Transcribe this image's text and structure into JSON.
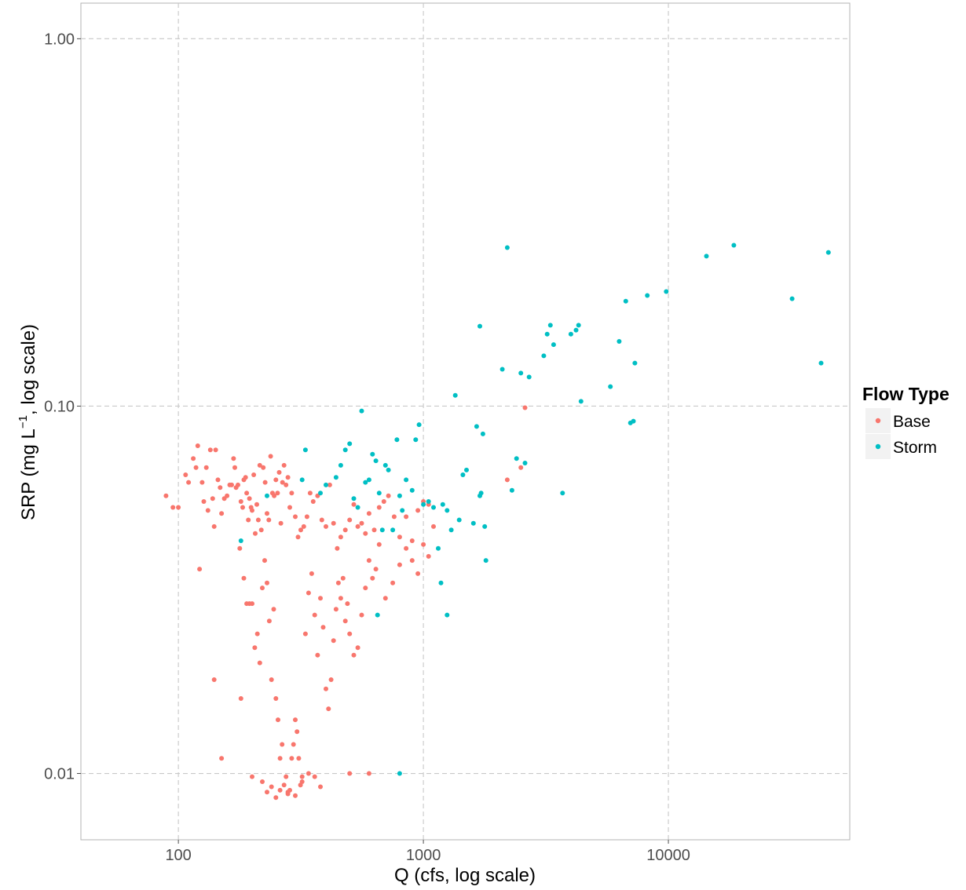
{
  "chart_data": {
    "type": "scatter",
    "xlabel": "Q (cfs, log scale)",
    "ylabel_main": "SRP (mg L",
    "ylabel_sup": "−1",
    "ylabel_rest": ", log scale)",
    "x_scale": "log10",
    "y_scale": "log10",
    "xlim": [
      40,
      55000
    ],
    "ylim": [
      0.0066,
      1.25
    ],
    "x_ticks": [
      100,
      1000,
      10000
    ],
    "x_tick_labels": [
      "100",
      "1000",
      "10000"
    ],
    "y_ticks": [
      0.01,
      0.1,
      1.0
    ],
    "y_tick_labels": [
      "0.01",
      "0.10",
      "1.00"
    ],
    "grid": true,
    "grid_style": "dashed",
    "legend": {
      "title": "Flow Type",
      "placement": "right",
      "entries": [
        "Base",
        "Storm"
      ]
    },
    "colors": {
      "Base": "#F8766D",
      "Storm": "#00BFC4"
    },
    "series": [
      {
        "name": "Base",
        "color": "#F8766D",
        "points": [
          [
            89,
            0.057
          ],
          [
            95,
            0.053
          ],
          [
            100,
            0.053
          ],
          [
            107,
            0.065
          ],
          [
            110,
            0.062
          ],
          [
            115,
            0.072
          ],
          [
            118,
            0.068
          ],
          [
            120,
            0.078
          ],
          [
            122,
            0.036
          ],
          [
            125,
            0.062
          ],
          [
            127,
            0.055
          ],
          [
            130,
            0.068
          ],
          [
            132,
            0.052
          ],
          [
            135,
            0.076
          ],
          [
            138,
            0.056
          ],
          [
            140,
            0.047
          ],
          [
            142,
            0.076
          ],
          [
            145,
            0.063
          ],
          [
            148,
            0.06
          ],
          [
            150,
            0.051
          ],
          [
            154,
            0.056
          ],
          [
            158,
            0.057
          ],
          [
            162,
            0.061
          ],
          [
            165,
            0.061
          ],
          [
            168,
            0.072
          ],
          [
            170,
            0.068
          ],
          [
            172,
            0.06
          ],
          [
            175,
            0.061
          ],
          [
            178,
            0.041
          ],
          [
            180,
            0.055
          ],
          [
            183,
            0.053
          ],
          [
            185,
            0.063
          ],
          [
            188,
            0.064
          ],
          [
            190,
            0.058
          ],
          [
            193,
            0.049
          ],
          [
            195,
            0.056
          ],
          [
            198,
            0.053
          ],
          [
            200,
            0.052
          ],
          [
            203,
            0.065
          ],
          [
            206,
            0.045
          ],
          [
            209,
            0.054
          ],
          [
            212,
            0.049
          ],
          [
            215,
            0.069
          ],
          [
            218,
            0.046
          ],
          [
            222,
            0.068
          ],
          [
            226,
            0.062
          ],
          [
            230,
            0.051
          ],
          [
            234,
            0.049
          ],
          [
            238,
            0.073
          ],
          [
            242,
            0.058
          ],
          [
            246,
            0.057
          ],
          [
            250,
            0.063
          ],
          [
            254,
            0.058
          ],
          [
            258,
            0.066
          ],
          [
            262,
            0.048
          ],
          [
            266,
            0.062
          ],
          [
            270,
            0.069
          ],
          [
            275,
            0.061
          ],
          [
            280,
            0.064
          ],
          [
            285,
            0.053
          ],
          [
            290,
            0.058
          ],
          [
            300,
            0.05
          ],
          [
            308,
            0.044
          ],
          [
            316,
            0.046
          ],
          [
            325,
            0.047
          ],
          [
            335,
            0.05
          ],
          [
            345,
            0.058
          ],
          [
            355,
            0.055
          ],
          [
            370,
            0.057
          ],
          [
            385,
            0.049
          ],
          [
            400,
            0.047
          ],
          [
            415,
            0.061
          ],
          [
            430,
            0.048
          ],
          [
            445,
            0.041
          ],
          [
            460,
            0.044
          ],
          [
            480,
            0.046
          ],
          [
            500,
            0.049
          ],
          [
            520,
            0.054
          ],
          [
            540,
            0.047
          ],
          [
            560,
            0.048
          ],
          [
            580,
            0.045
          ],
          [
            600,
            0.051
          ],
          [
            630,
            0.046
          ],
          [
            660,
            0.053
          ],
          [
            690,
            0.055
          ],
          [
            720,
            0.057
          ],
          [
            760,
            0.05
          ],
          [
            800,
            0.044
          ],
          [
            850,
            0.05
          ],
          [
            900,
            0.043
          ],
          [
            950,
            0.052
          ],
          [
            1000,
            0.055
          ],
          [
            1050,
            0.054
          ],
          [
            1100,
            0.047
          ],
          [
            140,
            0.018
          ],
          [
            150,
            0.011
          ],
          [
            180,
            0.016
          ],
          [
            185,
            0.034
          ],
          [
            190,
            0.029
          ],
          [
            195,
            0.029
          ],
          [
            200,
            0.029
          ],
          [
            205,
            0.022
          ],
          [
            210,
            0.024
          ],
          [
            215,
            0.02
          ],
          [
            220,
            0.032
          ],
          [
            225,
            0.038
          ],
          [
            230,
            0.033
          ],
          [
            235,
            0.026
          ],
          [
            240,
            0.018
          ],
          [
            245,
            0.028
          ],
          [
            250,
            0.016
          ],
          [
            255,
            0.014
          ],
          [
            260,
            0.011
          ],
          [
            265,
            0.012
          ],
          [
            270,
            0.0093
          ],
          [
            275,
            0.0098
          ],
          [
            280,
            0.0089
          ],
          [
            285,
            0.009
          ],
          [
            290,
            0.011
          ],
          [
            295,
            0.012
          ],
          [
            300,
            0.014
          ],
          [
            305,
            0.013
          ],
          [
            310,
            0.011
          ],
          [
            315,
            0.0093
          ],
          [
            320,
            0.0098
          ],
          [
            330,
            0.024
          ],
          [
            340,
            0.031
          ],
          [
            350,
            0.035
          ],
          [
            360,
            0.027
          ],
          [
            370,
            0.021
          ],
          [
            380,
            0.03
          ],
          [
            390,
            0.025
          ],
          [
            400,
            0.017
          ],
          [
            410,
            0.015
          ],
          [
            420,
            0.018
          ],
          [
            430,
            0.023
          ],
          [
            440,
            0.028
          ],
          [
            450,
            0.033
          ],
          [
            460,
            0.03
          ],
          [
            470,
            0.034
          ],
          [
            480,
            0.026
          ],
          [
            490,
            0.029
          ],
          [
            500,
            0.024
          ],
          [
            520,
            0.021
          ],
          [
            540,
            0.022
          ],
          [
            560,
            0.027
          ],
          [
            580,
            0.032
          ],
          [
            600,
            0.038
          ],
          [
            620,
            0.034
          ],
          [
            640,
            0.036
          ],
          [
            660,
            0.042
          ],
          [
            700,
            0.03
          ],
          [
            750,
            0.033
          ],
          [
            800,
            0.037
          ],
          [
            850,
            0.041
          ],
          [
            900,
            0.038
          ],
          [
            950,
            0.035
          ],
          [
            1000,
            0.042
          ],
          [
            1050,
            0.039
          ],
          [
            200,
            0.0098
          ],
          [
            220,
            0.0095
          ],
          [
            240,
            0.0092
          ],
          [
            260,
            0.009
          ],
          [
            280,
            0.0088
          ],
          [
            300,
            0.0087
          ],
          [
            320,
            0.0095
          ],
          [
            340,
            0.01
          ],
          [
            360,
            0.0098
          ],
          [
            380,
            0.0092
          ],
          [
            250,
            0.0086
          ],
          [
            230,
            0.0089
          ],
          [
            500,
            0.01
          ],
          [
            600,
            0.01
          ],
          [
            2200,
            0.063
          ],
          [
            2500,
            0.068
          ],
          [
            2600,
            0.099
          ]
        ]
      },
      {
        "name": "Storm",
        "color": "#00BFC4",
        "points": [
          [
            180,
            0.043
          ],
          [
            230,
            0.057
          ],
          [
            320,
            0.063
          ],
          [
            330,
            0.076
          ],
          [
            380,
            0.058
          ],
          [
            400,
            0.061
          ],
          [
            440,
            0.064
          ],
          [
            460,
            0.069
          ],
          [
            480,
            0.076
          ],
          [
            500,
            0.079
          ],
          [
            520,
            0.056
          ],
          [
            540,
            0.053
          ],
          [
            560,
            0.097
          ],
          [
            580,
            0.062
          ],
          [
            600,
            0.063
          ],
          [
            620,
            0.074
          ],
          [
            640,
            0.071
          ],
          [
            660,
            0.058
          ],
          [
            680,
            0.046
          ],
          [
            700,
            0.069
          ],
          [
            720,
            0.067
          ],
          [
            750,
            0.046
          ],
          [
            780,
            0.081
          ],
          [
            800,
            0.057
          ],
          [
            820,
            0.052
          ],
          [
            850,
            0.063
          ],
          [
            900,
            0.059
          ],
          [
            930,
            0.081
          ],
          [
            960,
            0.089
          ],
          [
            1000,
            0.054
          ],
          [
            1050,
            0.055
          ],
          [
            1100,
            0.053
          ],
          [
            1150,
            0.041
          ],
          [
            1200,
            0.054
          ],
          [
            1250,
            0.052
          ],
          [
            1300,
            0.046
          ],
          [
            1350,
            0.107
          ],
          [
            1400,
            0.049
          ],
          [
            1450,
            0.065
          ],
          [
            1500,
            0.067
          ],
          [
            1600,
            0.048
          ],
          [
            1650,
            0.088
          ],
          [
            1700,
            0.057
          ],
          [
            1720,
            0.058
          ],
          [
            1750,
            0.084
          ],
          [
            1780,
            0.047
          ],
          [
            1800,
            0.038
          ],
          [
            1700,
            0.165
          ],
          [
            2100,
            0.126
          ],
          [
            2200,
            0.27
          ],
          [
            2300,
            0.059
          ],
          [
            2400,
            0.072
          ],
          [
            2500,
            0.123
          ],
          [
            2600,
            0.07
          ],
          [
            2700,
            0.12
          ],
          [
            3100,
            0.137
          ],
          [
            3200,
            0.157
          ],
          [
            3300,
            0.166
          ],
          [
            3400,
            0.147
          ],
          [
            3700,
            0.058
          ],
          [
            4000,
            0.157
          ],
          [
            4200,
            0.161
          ],
          [
            4300,
            0.166
          ],
          [
            4400,
            0.103
          ],
          [
            5800,
            0.113
          ],
          [
            6300,
            0.15
          ],
          [
            6700,
            0.193
          ],
          [
            7000,
            0.09
          ],
          [
            7200,
            0.091
          ],
          [
            7300,
            0.131
          ],
          [
            8200,
            0.2
          ],
          [
            9800,
            0.205
          ],
          [
            14300,
            0.256
          ],
          [
            18500,
            0.274
          ],
          [
            32000,
            0.196
          ],
          [
            42000,
            0.131
          ],
          [
            45000,
            0.262
          ],
          [
            650,
            0.027
          ],
          [
            1250,
            0.027
          ],
          [
            1180,
            0.033
          ],
          [
            800,
            0.01
          ]
        ]
      }
    ]
  }
}
